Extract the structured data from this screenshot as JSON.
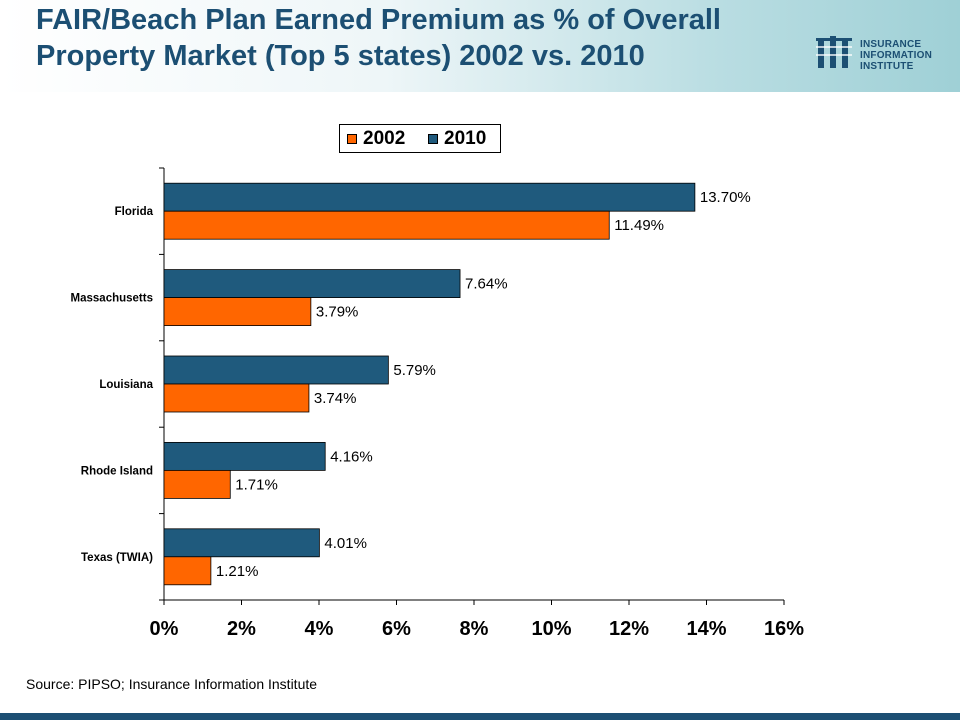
{
  "title": "FAIR/Beach Plan Earned Premium as % of Overall Property Market (Top 5 states) 2002 vs. 2010",
  "logo": {
    "line1": "INSURANCE",
    "line2": "INFORMATION",
    "line3": "INSTITUTE"
  },
  "source": "Source: PIPSO; Insurance Information Institute",
  "colors": {
    "title": "#1c4f73",
    "series_2002": "#ff6600",
    "series_2010": "#1f5a7d"
  },
  "chart_data": {
    "type": "bar",
    "orientation": "horizontal",
    "title": "",
    "xlabel": "",
    "ylabel": "",
    "categories": [
      "Florida",
      "Massachusetts",
      "Louisiana",
      "Rhode Island",
      "Texas (TWIA)"
    ],
    "series": [
      {
        "name": "2002",
        "color": "#ff6600",
        "values": [
          11.49,
          3.79,
          3.74,
          1.71,
          1.21
        ],
        "labels": [
          "11.49%",
          "3.79%",
          "3.74%",
          "1.71%",
          "1.21%"
        ]
      },
      {
        "name": "2010",
        "color": "#1f5a7d",
        "values": [
          13.7,
          7.64,
          5.79,
          4.16,
          4.01
        ],
        "labels": [
          "13.70%",
          "7.64%",
          "5.79%",
          "4.16%",
          "4.01%"
        ]
      }
    ],
    "xlim": [
      0,
      16
    ],
    "xticks": [
      0,
      2,
      4,
      6,
      8,
      10,
      12,
      14,
      16
    ],
    "xtick_labels": [
      "0%",
      "2%",
      "4%",
      "6%",
      "8%",
      "10%",
      "12%",
      "14%",
      "16%"
    ],
    "grid": false,
    "legend_position": "top"
  }
}
